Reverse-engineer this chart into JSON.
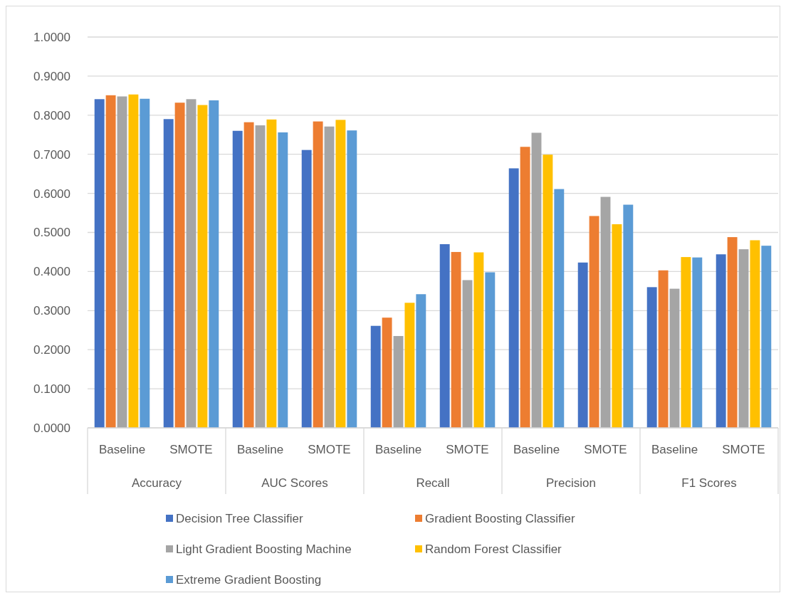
{
  "chart_data": {
    "type": "bar",
    "categories": [
      "Baseline",
      "SMOTE",
      "Baseline",
      "SMOTE",
      "Baseline",
      "SMOTE",
      "Baseline",
      "SMOTE",
      "Baseline",
      "SMOTE"
    ],
    "annotations": [
      "Accuracy",
      "AUC Scores",
      "Recall",
      "Precision",
      "F1 Scores"
    ],
    "series": [
      {
        "name": "Decision Tree Classifier",
        "color": "#4472c4",
        "values": [
          0.841,
          0.79,
          0.76,
          0.711,
          0.261,
          0.47,
          0.664,
          0.423,
          0.36,
          0.444
        ]
      },
      {
        "name": "Gradient Boosting Classifier",
        "color": "#ed7d31",
        "values": [
          0.851,
          0.832,
          0.782,
          0.784,
          0.282,
          0.45,
          0.719,
          0.542,
          0.403,
          0.488
        ]
      },
      {
        "name": "Light Gradient Boosting Machine",
        "color": "#a5a5a5",
        "values": [
          0.848,
          0.841,
          0.774,
          0.771,
          0.235,
          0.378,
          0.755,
          0.591,
          0.356,
          0.457
        ]
      },
      {
        "name": "Random Forest Classifier",
        "color": "#ffc000",
        "values": [
          0.853,
          0.826,
          0.789,
          0.788,
          0.32,
          0.449,
          0.699,
          0.521,
          0.437,
          0.48
        ]
      },
      {
        "name": "Extreme Gradient Boosting",
        "color": "#5b9bd5",
        "values": [
          0.842,
          0.838,
          0.756,
          0.761,
          0.342,
          0.398,
          0.611,
          0.571,
          0.436,
          0.466
        ]
      }
    ],
    "ylim": [
      0,
      1
    ],
    "yticks": [
      {
        "value": 0,
        "label": "0.0000"
      },
      {
        "value": 0.1,
        "label": "0.1000"
      },
      {
        "value": 0.2,
        "label": "0.2000"
      },
      {
        "value": 0.3,
        "label": "0.3000"
      },
      {
        "value": 0.4,
        "label": "0.4000"
      },
      {
        "value": 0.5,
        "label": "0.5000"
      },
      {
        "value": 0.6,
        "label": "0.6000"
      },
      {
        "value": 0.7,
        "label": "0.7000"
      },
      {
        "value": 0.8,
        "label": "0.8000"
      },
      {
        "value": 0.9,
        "label": "0.9000"
      },
      {
        "value": 1,
        "label": "1.0000"
      }
    ],
    "grid": "y",
    "legend": "bottom"
  }
}
